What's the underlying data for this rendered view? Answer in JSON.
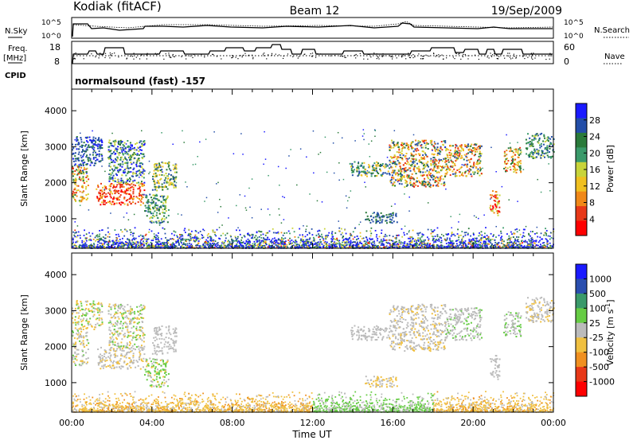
{
  "header": {
    "station": "Kodiak (fitACF)",
    "beam": "Beam 12",
    "date": "19/Sep/2009"
  },
  "top_panels": {
    "nsky_label": "N.Sky",
    "nsearch_label": "N.Search",
    "nsky_ticks": [
      "10^5",
      "10^0"
    ],
    "nsearch_ticks": [
      "10^5",
      "10^0"
    ],
    "freq_label_1": "Freq.",
    "freq_label_2": "[MHz]",
    "freq_ticks": [
      "18",
      "8"
    ],
    "nave_label": "Nave",
    "nave_ticks": [
      "60",
      "0"
    ],
    "cpid_label": "CPID",
    "cpid_text": "normalsound (fast) -157"
  },
  "colors": {
    "power": [
      "#1a1aff",
      "#234ea8",
      "#2a7a3a",
      "#3a9a6a",
      "#c8d43a",
      "#f0c020",
      "#f08818",
      "#e83818",
      "#ff0000"
    ],
    "velocity": [
      "#1a1aff",
      "#2a4eaf",
      "#3a9a6a",
      "#66cc44",
      "#bbbbbb",
      "#f0c040",
      "#f09020",
      "#e83818",
      "#ff0000"
    ]
  },
  "chart_data": [
    {
      "type": "heatmap",
      "name_key": "power",
      "xlabel": "",
      "ylabel": "Slant Range [km]",
      "x_range_hours": [
        0,
        24
      ],
      "ylim": [
        180,
        4600
      ],
      "yticks": [
        "4000",
        "3000",
        "2000",
        "1000"
      ],
      "colorbar_label": "Power [dB]",
      "colorbar_ticks": [
        "28",
        "24",
        "20",
        "16",
        "12",
        "8",
        "4"
      ],
      "grid": false
    },
    {
      "type": "heatmap",
      "name_key": "velocity",
      "xlabel": "Time UT",
      "ylabel": "Slant Range [km]",
      "x_range_hours": [
        0,
        24
      ],
      "ylim": [
        180,
        4600
      ],
      "yticks": [
        "4000",
        "3000",
        "2000",
        "1000"
      ],
      "xticks": [
        "00:00",
        "04:00",
        "08:00",
        "12:00",
        "16:00",
        "20:00",
        "00:00"
      ],
      "colorbar_label": "Velocity [m s",
      "colorbar_label_sup": "-1",
      "colorbar_label_end": "]",
      "colorbar_ticks": [
        "1000",
        "500",
        "100",
        "25",
        "-25",
        "-100",
        "-500",
        "-1000"
      ],
      "grid": false
    }
  ]
}
